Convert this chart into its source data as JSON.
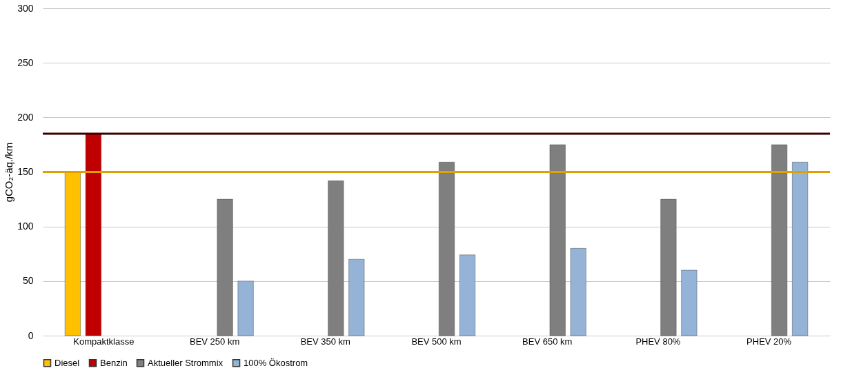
{
  "chart_data": {
    "type": "bar",
    "ylabel": "gCO₂-äq./km",
    "categories": [
      "Kompaktklasse",
      "BEV 250 km",
      "BEV 350 km",
      "BEV 500 km",
      "BEV 650 km",
      "PHEV 80%",
      "PHEV 20%"
    ],
    "series": [
      {
        "name": "Diesel",
        "color": "#ffc000",
        "values": [
          150,
          null,
          null,
          null,
          null,
          null,
          null
        ]
      },
      {
        "name": "Benzin",
        "color": "#c00000",
        "values": [
          185,
          null,
          null,
          null,
          null,
          null,
          null
        ]
      },
      {
        "name": "Aktueller Strommix",
        "color": "#7f7f7f",
        "values": [
          null,
          125,
          142,
          159,
          175,
          125,
          175
        ]
      },
      {
        "name": "100% Ökostrom",
        "color": "#95b3d7",
        "values": [
          null,
          50,
          70,
          74,
          80,
          60,
          159
        ]
      }
    ],
    "ylim": [
      0,
      300
    ],
    "yticks": [
      0,
      50,
      100,
      150,
      200,
      250,
      300
    ],
    "grid": "y",
    "legend": "bottom",
    "ref_lines": [
      {
        "axis": "y",
        "value": 150,
        "color": "#e0a000"
      },
      {
        "axis": "y",
        "value": 185,
        "color": "#3a0000"
      }
    ]
  }
}
